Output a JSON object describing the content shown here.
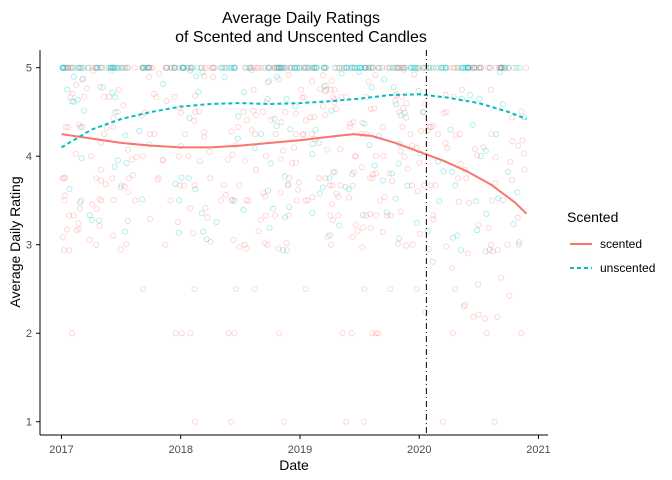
{
  "chart_data": {
    "type": "scatter",
    "title": [
      "Average Daily Ratings",
      "of Scented and Unscented Candles"
    ],
    "xlabel": "Date",
    "ylabel": "Average Daily Rating",
    "x_ticks": [
      "2017",
      "2018",
      "2019",
      "2020",
      "2021"
    ],
    "y_ticks": [
      "1",
      "2",
      "3",
      "4",
      "5"
    ],
    "xlim": [
      2016.82,
      2021.08
    ],
    "ylim": [
      0.85,
      5.2
    ],
    "grid": false,
    "reference_line": {
      "x": 2020.06,
      "style": "dot-dash"
    },
    "legend": {
      "title": "Scented",
      "placement": "right",
      "entries": [
        {
          "label": "scented",
          "color": "#F8766D",
          "linetype": "solid"
        },
        {
          "label": "unscented",
          "color": "#00BFC4",
          "linetype": "dashed"
        }
      ]
    },
    "series": [
      {
        "name": "scented",
        "color": "#F8766D",
        "smooth": [
          [
            2017.0,
            4.25
          ],
          [
            2017.25,
            4.2
          ],
          [
            2017.5,
            4.15
          ],
          [
            2017.75,
            4.12
          ],
          [
            2018.0,
            4.1
          ],
          [
            2018.25,
            4.1
          ],
          [
            2018.5,
            4.12
          ],
          [
            2018.75,
            4.15
          ],
          [
            2019.0,
            4.18
          ],
          [
            2019.25,
            4.22
          ],
          [
            2019.45,
            4.25
          ],
          [
            2019.6,
            4.23
          ],
          [
            2019.8,
            4.15
          ],
          [
            2020.0,
            4.05
          ],
          [
            2020.2,
            3.95
          ],
          [
            2020.4,
            3.83
          ],
          [
            2020.6,
            3.68
          ],
          [
            2020.8,
            3.48
          ],
          [
            2020.9,
            3.35
          ]
        ]
      },
      {
        "name": "unscented",
        "color": "#00BFC4",
        "smooth": [
          [
            2017.0,
            4.1
          ],
          [
            2017.25,
            4.3
          ],
          [
            2017.5,
            4.42
          ],
          [
            2017.75,
            4.5
          ],
          [
            2018.0,
            4.56
          ],
          [
            2018.25,
            4.59
          ],
          [
            2018.5,
            4.6
          ],
          [
            2018.75,
            4.59
          ],
          [
            2019.0,
            4.6
          ],
          [
            2019.25,
            4.62
          ],
          [
            2019.5,
            4.65
          ],
          [
            2019.75,
            4.69
          ],
          [
            2020.0,
            4.7
          ],
          [
            2020.25,
            4.66
          ],
          [
            2020.5,
            4.6
          ],
          [
            2020.75,
            4.5
          ],
          [
            2020.9,
            4.42
          ]
        ]
      }
    ]
  }
}
